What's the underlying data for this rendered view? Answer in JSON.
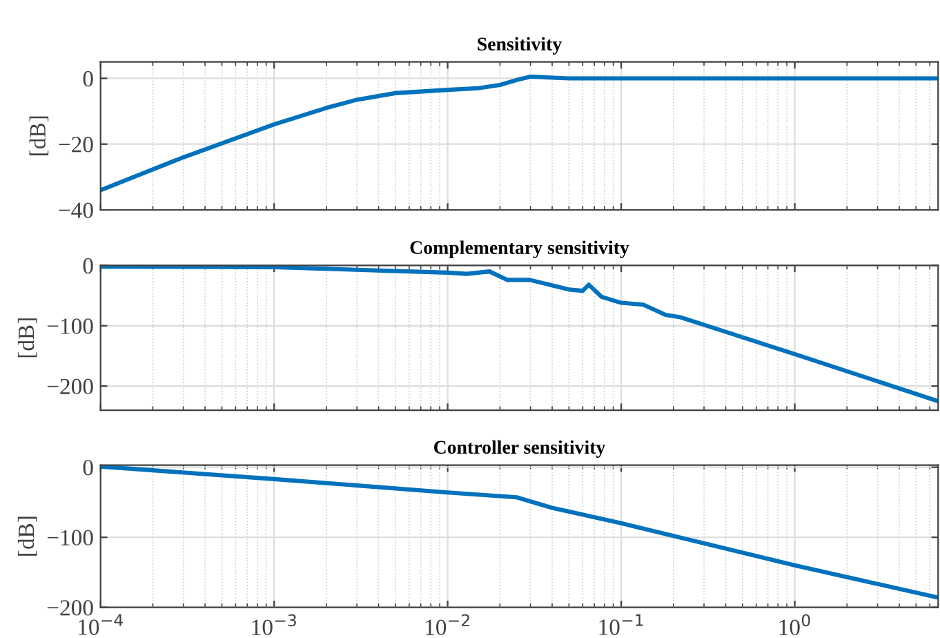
{
  "chart_data": [
    {
      "type": "line",
      "title": "Sensitivity",
      "ylabel": "[dB]",
      "x": [
        0.0001,
        0.0003,
        0.001,
        0.002,
        0.003,
        0.005,
        0.01,
        0.015,
        0.02,
        0.025,
        0.03,
        0.04,
        0.05,
        0.1,
        1,
        6.7
      ],
      "series": [
        {
          "color": "#0072bd",
          "values": [
            -34,
            -24,
            -14,
            -9,
            -6.5,
            -4.5,
            -3.5,
            -3,
            -2,
            -0.5,
            0.5,
            0.2,
            0,
            0,
            0,
            0
          ]
        }
      ],
      "xlim": [
        0.0001,
        6.7
      ],
      "xticks": [
        {
          "value": 0.0001,
          "label": null
        },
        {
          "value": 0.001,
          "label": null
        },
        {
          "value": 0.01,
          "label": null
        },
        {
          "value": 0.1,
          "label": null
        },
        {
          "value": 1,
          "label": null
        }
      ],
      "ylim": [
        -40,
        5
      ],
      "yticks": [
        {
          "value": -40,
          "label": "−40"
        },
        {
          "value": -20,
          "label": "−20"
        },
        0
      ],
      "log": "x",
      "grid": true,
      "tick_labels": "y"
    },
    {
      "type": "line",
      "title": "Complementary sensitivity",
      "ylabel": "[dB]",
      "x": [
        0.0001,
        0.001,
        0.01,
        0.0129,
        0.0174,
        0.022,
        0.0297,
        0.05,
        0.06,
        0.065,
        0.077,
        0.1,
        0.134,
        0.18,
        0.22,
        1,
        6.7
      ],
      "series": [
        {
          "color": "#0072bd",
          "values": [
            -2,
            -3,
            -12,
            -14,
            -10,
            -24,
            -24,
            -40,
            -42,
            -32,
            -52,
            -62,
            -65,
            -82,
            -86,
            -147,
            -225
          ]
        }
      ],
      "xlim": [
        0.0001,
        6.7
      ],
      "xticks": [
        {
          "value": 0.0001,
          "label": null
        },
        {
          "value": 0.001,
          "label": null
        },
        {
          "value": 0.01,
          "label": null
        },
        {
          "value": 0.1,
          "label": null
        },
        {
          "value": 1,
          "label": null
        }
      ],
      "ylim": [
        -240,
        0
      ],
      "yticks": [
        {
          "value": -200,
          "label": "−200"
        },
        {
          "value": -100,
          "label": "−100"
        },
        0
      ],
      "log": "x",
      "grid": true,
      "tick_labels": "y"
    },
    {
      "type": "line",
      "title": "Controller sensitivity",
      "ylabel": "[dB]",
      "x": [
        0.0001,
        0.001,
        0.01,
        0.025,
        0.04,
        0.1,
        1,
        6.7
      ],
      "series": [
        {
          "color": "#0072bd",
          "values": [
            1,
            -17,
            -36,
            -43,
            -58,
            -80,
            -140,
            -186
          ]
        }
      ],
      "xlim": [
        0.0001,
        6.7
      ],
      "xticks": [
        {
          "value": 0.0001,
          "label": "10$^{−4}$"
        },
        {
          "value": 0.001,
          "label": "10$^{−3}$"
        },
        {
          "value": 0.01,
          "label": "10$^{−2}$"
        },
        {
          "value": 0.1,
          "label": "10$^{−1}$"
        },
        {
          "value": 1,
          "label": "10$^{0}$"
        }
      ],
      "ylim": [
        -200,
        3
      ],
      "yticks": [
        {
          "value": -200,
          "label": "−200"
        },
        {
          "value": -100,
          "label": "−100"
        },
        0
      ],
      "log": "x",
      "grid": true
    }
  ]
}
